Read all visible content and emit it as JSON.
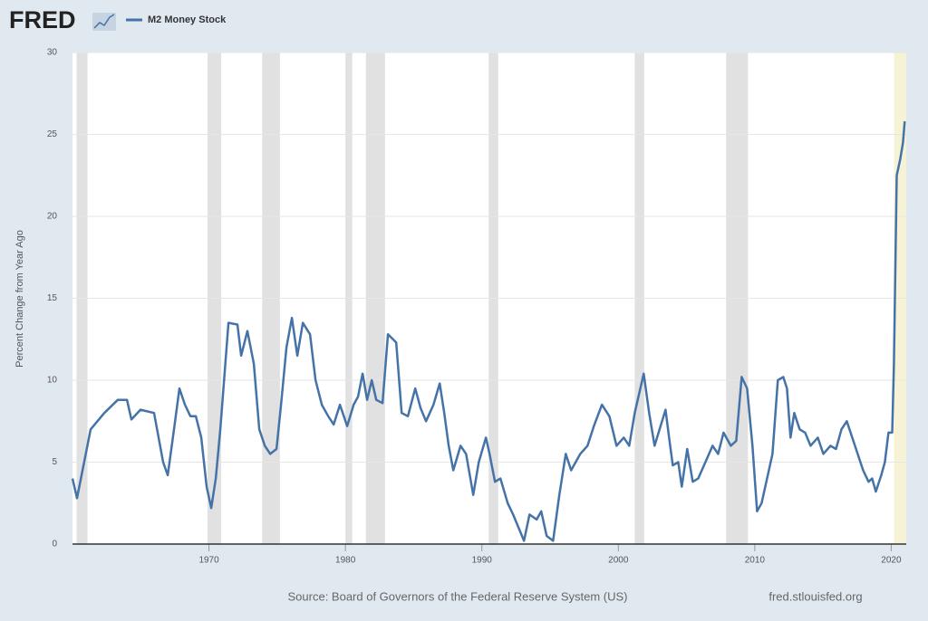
{
  "chart_data": {
    "type": "line",
    "logo": "FRED",
    "y_label": "Percent Change from Year Ago",
    "source": "Source: Board of Governors of the Federal Reserve System (US)",
    "site": "fred.stlouisfed.org",
    "xlim": [
      1960,
      2021.1
    ],
    "ylim": [
      0,
      30
    ],
    "xticks": [
      1970,
      1980,
      1990,
      2000,
      2010,
      2020
    ],
    "yticks": [
      0,
      5,
      10,
      15,
      20,
      25,
      30
    ],
    "grid": true,
    "recession_color": "#e1e1e1",
    "recessions": [
      [
        1960.3,
        1961.1
      ],
      [
        1969.9,
        1970.9
      ],
      [
        1973.9,
        1975.2
      ],
      [
        1980.0,
        1980.5
      ],
      [
        1981.5,
        1982.9
      ],
      [
        1990.5,
        1991.2
      ],
      [
        2001.2,
        2001.9
      ],
      [
        2007.9,
        2009.5
      ]
    ],
    "highlight_color": "#f5f2d6",
    "highlight": [
      2020.2,
      2021.1
    ],
    "series": [
      {
        "name": "M2 Money Stock",
        "color": "#4572a7",
        "x": [
          1960.0,
          1960.33,
          1961.33,
          1962.33,
          1963.32,
          1963.99,
          1964.32,
          1964.98,
          1965.98,
          1966.64,
          1966.98,
          1967.44,
          1967.84,
          1968.24,
          1968.64,
          1969.04,
          1969.44,
          1969.83,
          1970.17,
          1970.5,
          1970.83,
          1971.43,
          1972.09,
          1972.36,
          1972.82,
          1973.29,
          1973.69,
          1974.09,
          1974.49,
          1974.95,
          1975.28,
          1975.68,
          1976.08,
          1976.48,
          1976.88,
          1977.41,
          1977.81,
          1978.27,
          1978.74,
          1979.14,
          1979.6,
          1980.13,
          1980.6,
          1980.93,
          1981.26,
          1981.59,
          1981.93,
          1982.26,
          1982.72,
          1983.12,
          1983.72,
          1984.12,
          1984.58,
          1985.12,
          1985.51,
          1985.91,
          1986.45,
          1986.91,
          1987.24,
          1987.57,
          1987.91,
          1988.44,
          1988.84,
          1989.37,
          1989.77,
          1990.3,
          1990.56,
          1990.96,
          1991.36,
          1991.89,
          1992.29,
          1992.69,
          1993.09,
          1993.49,
          1994.02,
          1994.35,
          1994.75,
          1995.22,
          1995.68,
          1996.15,
          1996.54,
          1997.21,
          1997.74,
          1998.21,
          1998.8,
          1999.34,
          1999.87,
          2000.4,
          2000.8,
          2001.2,
          2001.86,
          2002.26,
          2002.66,
          2003.46,
          2003.72,
          2003.99,
          2004.39,
          2004.65,
          2005.05,
          2005.45,
          2005.85,
          2006.38,
          2006.91,
          2007.31,
          2007.71,
          2008.24,
          2008.64,
          2009.04,
          2009.44,
          2009.83,
          2010.17,
          2010.5,
          2010.9,
          2011.3,
          2011.69,
          2012.09,
          2012.36,
          2012.62,
          2012.89,
          2013.29,
          2013.69,
          2014.09,
          2014.62,
          2015.02,
          2015.55,
          2015.95,
          2016.35,
          2016.74,
          2017.14,
          2017.54,
          2017.94,
          2018.34,
          2018.6,
          2018.87,
          2019.27,
          2019.53,
          2019.8,
          2020.07,
          2020.2,
          2020.4,
          2020.66,
          2020.86,
          2020.99
        ],
        "values": [
          4.0,
          2.8,
          7.0,
          8.0,
          8.8,
          8.8,
          7.6,
          8.2,
          8.0,
          5.0,
          4.2,
          7.0,
          9.5,
          8.5,
          7.8,
          7.8,
          6.5,
          3.5,
          2.2,
          4.0,
          7.0,
          13.5,
          13.4,
          11.5,
          13.0,
          11.0,
          7.0,
          6.0,
          5.5,
          5.8,
          8.5,
          12.0,
          13.8,
          11.5,
          13.5,
          12.8,
          10.0,
          8.5,
          7.8,
          7.3,
          8.5,
          7.2,
          8.5,
          9.0,
          10.4,
          8.8,
          10.0,
          8.8,
          8.6,
          12.8,
          12.3,
          8.0,
          7.8,
          9.5,
          8.3,
          7.5,
          8.5,
          9.8,
          8.0,
          6.0,
          4.5,
          6.0,
          5.5,
          3.0,
          5.0,
          6.5,
          5.5,
          3.8,
          4.0,
          2.5,
          1.8,
          1.0,
          0.2,
          1.8,
          1.5,
          2.0,
          0.5,
          0.2,
          3.0,
          5.5,
          4.5,
          5.5,
          6.0,
          7.2,
          8.5,
          7.8,
          6.0,
          6.5,
          6.0,
          8.0,
          10.4,
          8.0,
          6.0,
          8.2,
          6.5,
          4.8,
          5.0,
          3.5,
          5.8,
          3.8,
          4.0,
          5.0,
          6.0,
          5.5,
          6.8,
          6.0,
          6.3,
          10.2,
          9.5,
          6.0,
          2.0,
          2.5,
          4.0,
          5.5,
          10.0,
          10.2,
          9.5,
          6.5,
          8.0,
          7.0,
          6.8,
          6.0,
          6.5,
          5.5,
          6.0,
          5.8,
          7.0,
          7.5,
          6.5,
          5.5,
          4.5,
          3.8,
          4.0,
          3.2,
          4.2,
          5.0,
          6.8,
          6.8,
          11.0,
          22.5,
          23.5,
          24.5,
          25.8
        ]
      }
    ]
  }
}
